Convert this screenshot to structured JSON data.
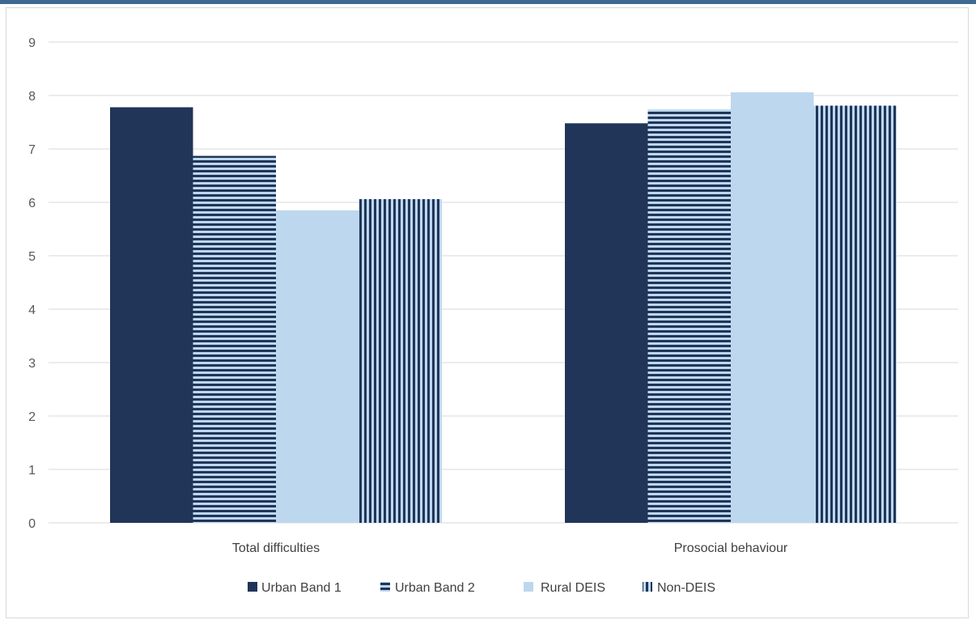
{
  "chart_data": {
    "type": "bar",
    "title": "",
    "xlabel": "",
    "ylabel": "",
    "categories": [
      "Total difficulties",
      "Prosocial behaviour"
    ],
    "ylim": [
      0,
      9
    ],
    "yticks": [
      "0",
      "1",
      "2",
      "3",
      "4",
      "5",
      "6",
      "7",
      "8",
      "9"
    ],
    "grid": true,
    "legend_position": "bottom",
    "series": [
      {
        "name": "Urban Band 1",
        "values": [
          7.78,
          7.48
        ],
        "color": "#213559",
        "pattern": "solid"
      },
      {
        "name": "Urban Band 2",
        "values": [
          6.87,
          7.74
        ],
        "color": "#213559",
        "pattern": "horizontal-stripes"
      },
      {
        "name": "Rural DEIS",
        "values": [
          5.85,
          8.06
        ],
        "color": "#bdd7ee",
        "pattern": "solid"
      },
      {
        "name": "Non-DEIS",
        "values": [
          6.06,
          7.81
        ],
        "color": "#213559",
        "pattern": "vertical-stripes"
      }
    ]
  },
  "colors": {
    "top_bar": "#3e6a92",
    "dark_navy": "#213559",
    "light_blue": "#bdd7ee",
    "gridline": "#d9d9d9"
  }
}
